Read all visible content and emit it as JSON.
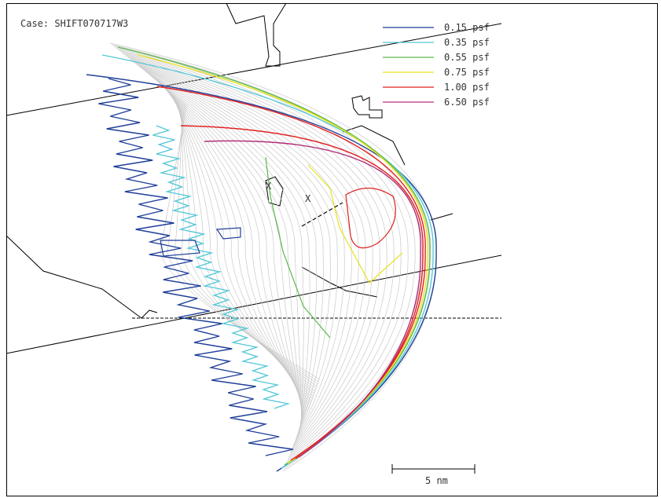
{
  "case_label": "Case: SHIFT070717W3",
  "legend": {
    "items": [
      {
        "label": "0.15 psf",
        "color": "#1f3f99"
      },
      {
        "label": "0.35 psf",
        "color": "#55c8d8"
      },
      {
        "label": "0.55 psf",
        "color": "#5ab94a"
      },
      {
        "label": "0.75 psf",
        "color": "#e8e21a"
      },
      {
        "label": "1.00 psf",
        "color": "#e02020"
      },
      {
        "label": "6.50 psf",
        "color": "#b0307a"
      }
    ]
  },
  "scale_bar": {
    "label": "5 nm"
  },
  "markers": [
    {
      "label": "X"
    },
    {
      "label": "X"
    }
  ],
  "colors": {
    "isopleth": "#c8c8c8",
    "map_lines": "#000000"
  }
}
